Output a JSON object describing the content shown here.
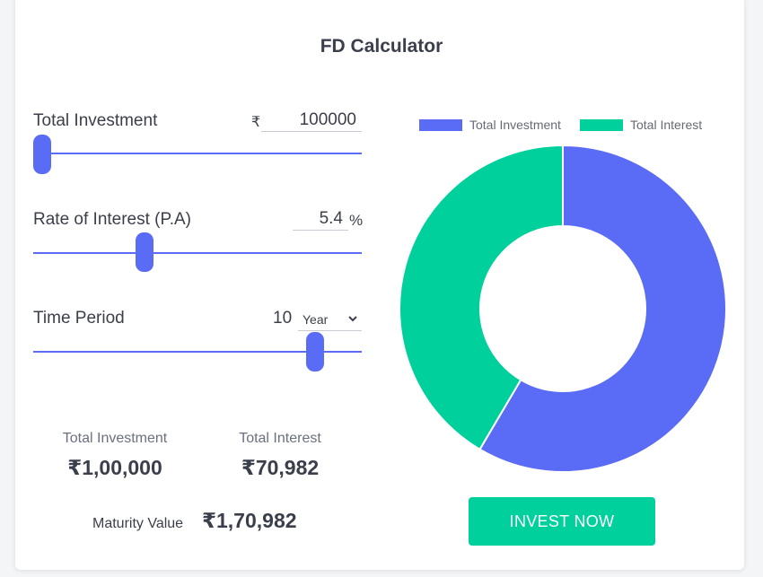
{
  "title": "FD Calculator",
  "colors": {
    "investment": "#5a6bf5",
    "interest": "#00d09c",
    "button": "#00d09c"
  },
  "investment": {
    "label": "Total Investment",
    "currency": "₹",
    "value": "100000",
    "slider_fraction": 0.0
  },
  "rate": {
    "label": "Rate of Interest (P.A)",
    "value": "5.4",
    "unit": "%",
    "slider_fraction": 0.33
  },
  "period": {
    "label": "Time Period",
    "value": "10",
    "unit_selected": "Year",
    "slider_fraction": 0.88
  },
  "summary": {
    "investment_label": "Total Investment",
    "investment_value": "₹1,00,000",
    "interest_label": "Total Interest",
    "interest_value": "₹70,982",
    "maturity_label": "Maturity Value",
    "maturity_value": "₹1,70,982"
  },
  "chart_data": {
    "type": "pie",
    "style": "donut",
    "categories": [
      "Total Investment",
      "Total Interest"
    ],
    "values": [
      100000,
      70982
    ],
    "colors": [
      "#5a6bf5",
      "#00d09c"
    ],
    "legend": "top"
  },
  "button": {
    "label": "INVEST NOW"
  }
}
